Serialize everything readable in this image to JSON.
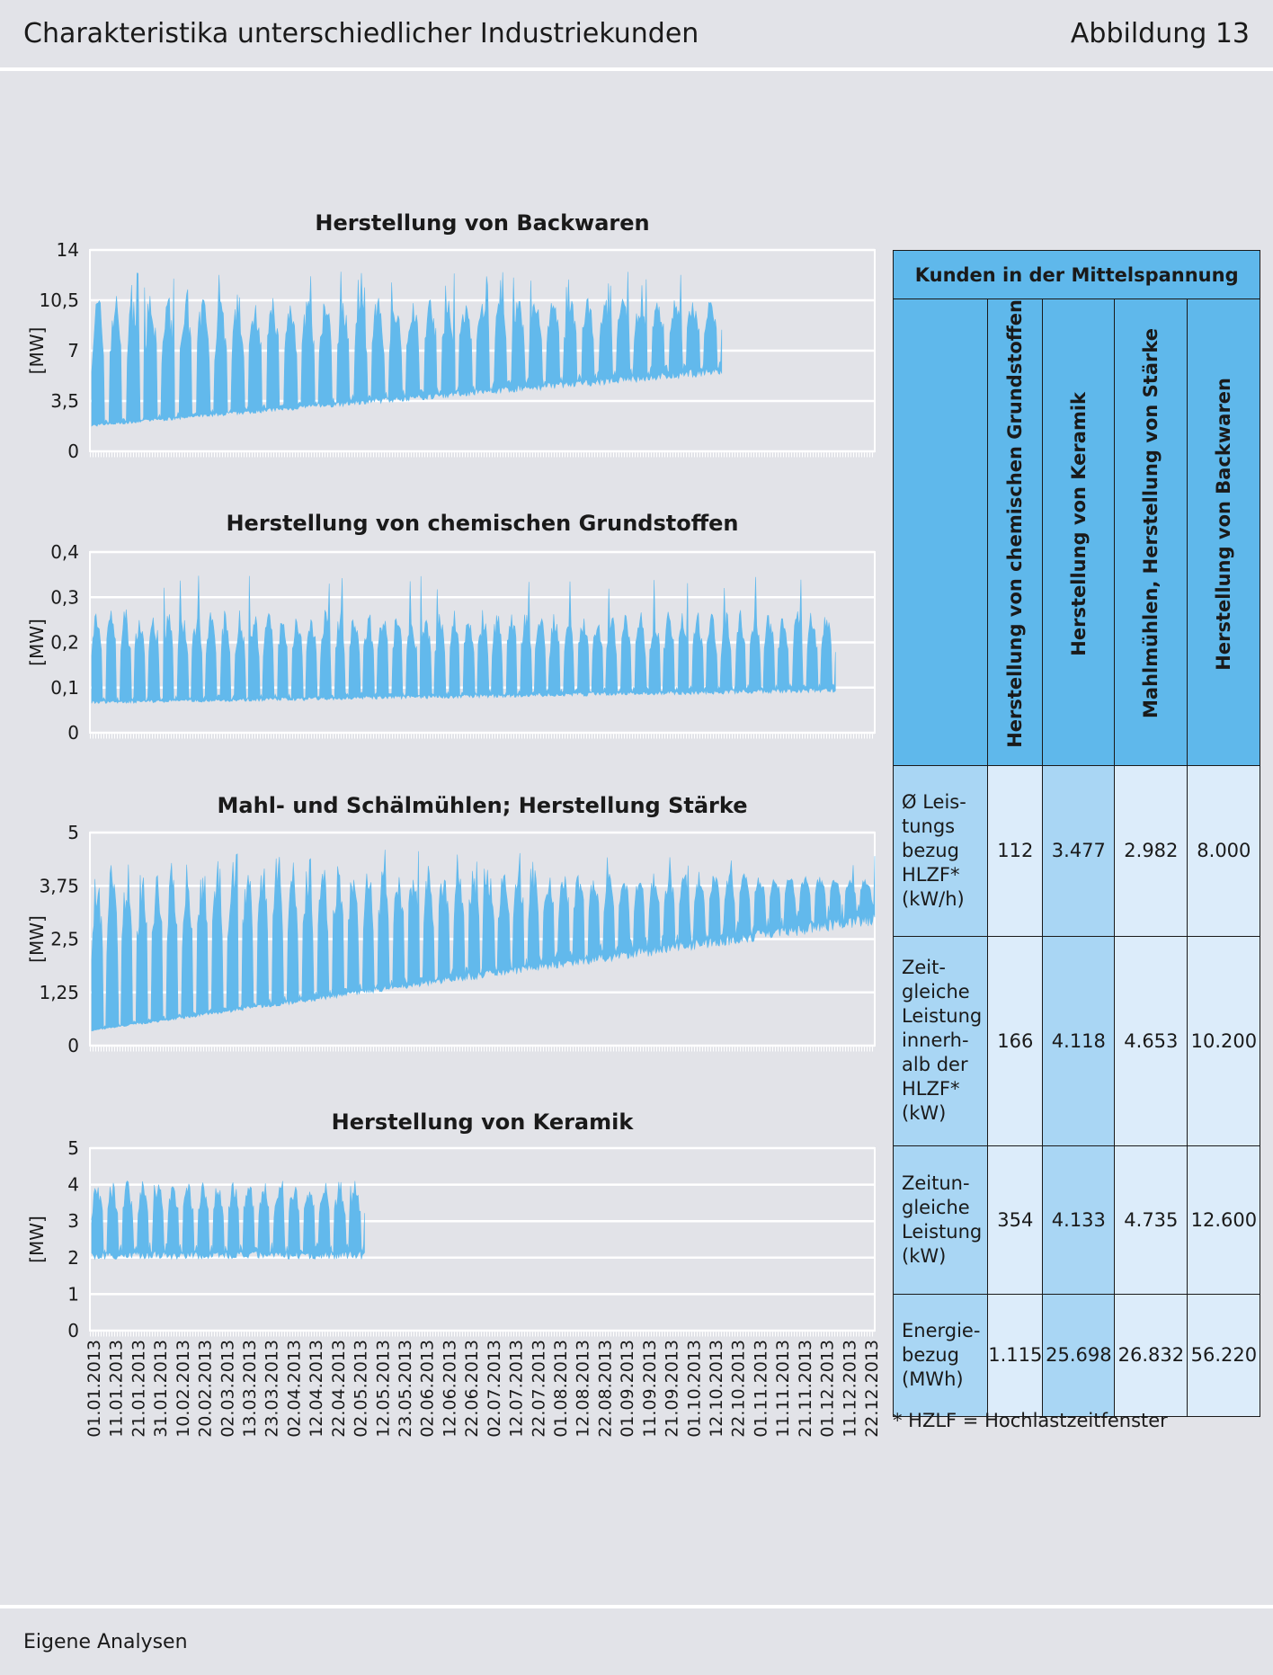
{
  "header": {
    "title": "Charakteristika unterschiedlicher Industriekunden",
    "figure": "Abbildung 13"
  },
  "footer": {
    "source": "Eigene Analysen"
  },
  "chart_data": [
    {
      "type": "area",
      "title": "Herstellung von Backwaren",
      "ylabel": "[MW]",
      "ylim": [
        0,
        14
      ],
      "yticks": [
        "0",
        "3,5",
        "7",
        "10,5",
        "14"
      ],
      "yvals": [
        0,
        3.5,
        7,
        10.5,
        14
      ],
      "data_end": 0.805,
      "base": [
        2.0,
        6.2
      ],
      "peak": 10.0,
      "max_peak": 12.5,
      "cycles": 36
    },
    {
      "type": "area",
      "title": "Herstellung von chemischen Grundstoffen",
      "ylabel": "[MW]",
      "ylim": [
        0,
        0.4
      ],
      "yticks": [
        "0",
        "0,1",
        "0,2",
        "0,3",
        "0,4"
      ],
      "yvals": [
        0,
        0.1,
        0.2,
        0.3,
        0.4
      ],
      "data_end": 0.95,
      "base": [
        0.075,
        0.105
      ],
      "peak": 0.25,
      "max_peak": 0.35,
      "cycles": 52
    },
    {
      "type": "area",
      "title": "Mahl- und Schälmühlen; Herstellung Stärke",
      "ylabel": "[MW]",
      "ylim": [
        0,
        5
      ],
      "yticks": [
        "0",
        "1,25",
        "2,5",
        "3,75",
        "5"
      ],
      "yvals": [
        0,
        1.25,
        2.5,
        3.75,
        5
      ],
      "data_end": 1.0,
      "base": [
        0.4,
        3.3
      ],
      "peak": 3.9,
      "max_peak": 4.6,
      "cycles": 52
    },
    {
      "type": "area",
      "title": "Herstellung von Keramik",
      "ylabel": "[MW]",
      "ylim": [
        0,
        5
      ],
      "yticks": [
        "0",
        "1",
        "2",
        "3",
        "4",
        "5"
      ],
      "yvals": [
        0,
        1,
        2,
        3,
        4,
        5
      ],
      "data_end": 0.35,
      "base": [
        2.3,
        2.3
      ],
      "peak": 3.9,
      "max_peak": 4.1,
      "cycles": 18
    }
  ],
  "x_axis": {
    "ticks": [
      "01.01.2013",
      "11.01.2013",
      "21.01.2013",
      "31.01.2013",
      "10.02.2013",
      "20.02.2013",
      "02.03.2013",
      "13.03.2013",
      "23.03.2013",
      "02.04.2013",
      "12.04.2013",
      "22.04.2013",
      "02.05.2013",
      "12.05.2013",
      "23.05.2013",
      "02.06.2013",
      "12.06.2013",
      "22.06.2013",
      "02.07.2013",
      "12.07.2013",
      "22.07.2013",
      "01.08.2013",
      "12.08.2013",
      "22.08.2013",
      "01.09.2013",
      "11.09.2013",
      "21.09.2013",
      "01.10.2013",
      "12.10.2013",
      "22.10.2013",
      "01.11.2013",
      "11.11.2013",
      "21.11.2013",
      "01.12.2013",
      "11.12.2013",
      "22.12.2013"
    ]
  },
  "table": {
    "title": "Kunden in der Mittelspannung",
    "columns": [
      "Herstellung von chemischen Grundstoffen",
      "Herstellung von Keramik",
      "Mahlmühlen, Herstellung von Stärke",
      "Herstellung von Backwaren"
    ],
    "rows": [
      {
        "label": [
          "Ø Leis-",
          "tungs",
          "bezug",
          "HLZF*",
          "(kW/h)"
        ],
        "values": [
          "112",
          "3.477",
          "2.982",
          "8.000"
        ]
      },
      {
        "label": [
          "Zeit-",
          "gleiche",
          "Leistung",
          "innerh-",
          "alb der",
          "HLZF*",
          "(kW)"
        ],
        "values": [
          "166",
          "4.118",
          "4.653",
          "10.200"
        ]
      },
      {
        "label": [
          "Zeitun-",
          "gleiche",
          "Leistung",
          "(kW)"
        ],
        "values": [
          "354",
          "4.133",
          "4.735",
          "12.600"
        ]
      },
      {
        "label": [
          "Energie-",
          "bezug",
          "(MWh)"
        ],
        "values": [
          "1.115",
          "25.698",
          "26.832",
          "56.220"
        ]
      }
    ],
    "note": "* HZLF = Hochlastzeitfenster"
  },
  "colors": {
    "series": "#62b9ec",
    "grid": "#ffffff",
    "table_header": "#5fb8eb",
    "table_mid": "#a9d6f4",
    "table_light": "#dcecfa"
  }
}
